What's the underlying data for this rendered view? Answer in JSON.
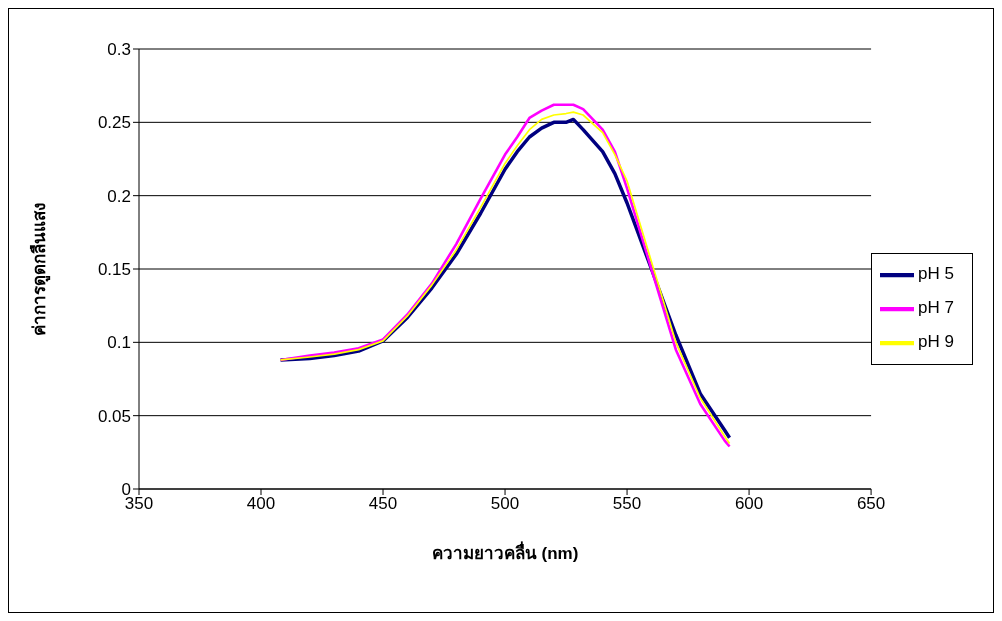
{
  "chart_data": {
    "type": "line",
    "xlabel": "ความยาวคลื่น (nm)",
    "ylabel": "ค่าการดูดกลืนแสง",
    "xlim": [
      350,
      650
    ],
    "xticks": [
      350,
      400,
      450,
      500,
      550,
      600,
      650
    ],
    "ylim": [
      0,
      0.3
    ],
    "yticks": [
      0,
      0.05,
      0.1,
      0.15,
      0.2,
      0.25,
      0.3
    ],
    "grid": "y",
    "legend": "right",
    "marker": "none",
    "x": [
      408,
      420,
      430,
      440,
      450,
      460,
      470,
      480,
      490,
      500,
      505,
      510,
      515,
      520,
      525,
      528,
      532,
      540,
      545,
      550,
      560,
      570,
      580,
      590,
      592
    ],
    "series": [
      {
        "name": "pH 5",
        "color": "#000080",
        "values": [
          0.088,
          0.089,
          0.091,
          0.094,
          0.101,
          0.117,
          0.137,
          0.16,
          0.188,
          0.218,
          0.23,
          0.24,
          0.246,
          0.25,
          0.25,
          0.252,
          0.245,
          0.23,
          0.215,
          0.195,
          0.15,
          0.105,
          0.065,
          0.04,
          0.035
        ]
      },
      {
        "name": "pH 7",
        "color": "#ff00ff",
        "values": [
          0.088,
          0.091,
          0.093,
          0.096,
          0.102,
          0.119,
          0.14,
          0.167,
          0.198,
          0.228,
          0.24,
          0.253,
          0.258,
          0.262,
          0.262,
          0.262,
          0.259,
          0.245,
          0.23,
          0.205,
          0.15,
          0.095,
          0.058,
          0.033,
          0.029
        ]
      },
      {
        "name": "pH 9",
        "color": "#ffff00",
        "values": [
          0.088,
          0.09,
          0.092,
          0.095,
          0.101,
          0.118,
          0.139,
          0.163,
          0.192,
          0.222,
          0.234,
          0.245,
          0.252,
          0.255,
          0.256,
          0.257,
          0.255,
          0.243,
          0.228,
          0.21,
          0.155,
          0.1,
          0.062,
          0.036,
          0.031
        ]
      }
    ]
  }
}
